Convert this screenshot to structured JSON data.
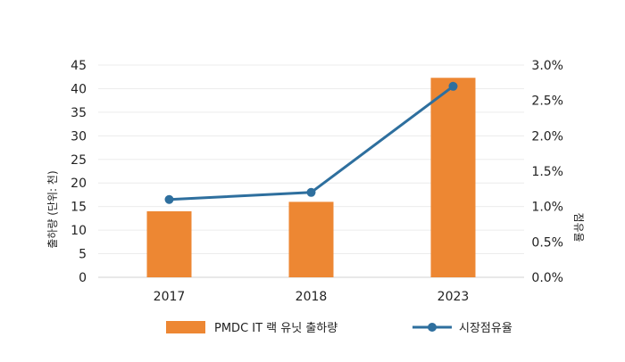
{
  "chart_data": {
    "type": "bar+line",
    "categories": [
      "2017",
      "2018",
      "2023"
    ],
    "series": [
      {
        "name": "PMDC IT 랙 유닛 출하량",
        "type": "bar",
        "axis": "left",
        "color": "#ED8733",
        "values": [
          14,
          16,
          42.3
        ]
      },
      {
        "name": "시장점유율",
        "type": "line",
        "axis": "right",
        "color": "#2E6F9E",
        "values": [
          1.1,
          1.2,
          2.7
        ]
      }
    ],
    "ylabel": "출하량 (단위: 천)",
    "y2label": "점유율",
    "ylim": [
      0,
      45
    ],
    "yticks": [
      "0",
      "5",
      "10",
      "15",
      "20",
      "25",
      "30",
      "35",
      "40",
      "45"
    ],
    "y2lim": [
      0,
      3.0
    ],
    "y2ticks": [
      "0.0%",
      "0.5%",
      "1.0%",
      "1.5%",
      "2.0%",
      "2.5%",
      "3.0%"
    ],
    "grid": true,
    "legend_position": "bottom"
  }
}
